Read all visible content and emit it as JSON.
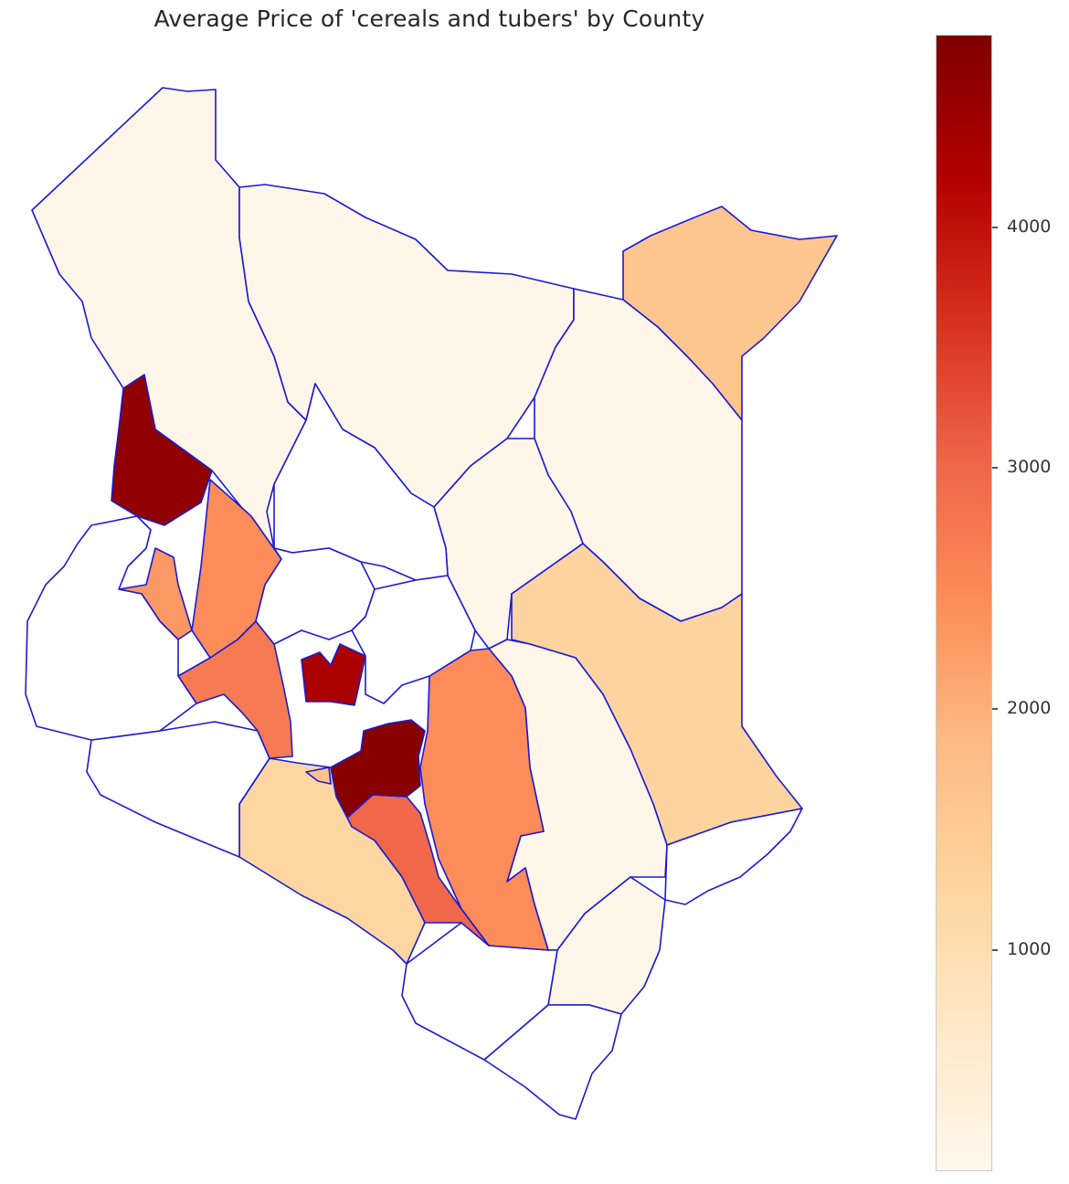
{
  "title": "Average Price of 'cereals and tubers' by County",
  "colorbar": {
    "cmap": "OrRd",
    "min": 80,
    "max": 4800,
    "ticks": [
      {
        "value": 1000,
        "label": "1000"
      },
      {
        "value": 2000,
        "label": "2000"
      },
      {
        "value": 3000,
        "label": "3000"
      },
      {
        "value": 4000,
        "label": "4000"
      }
    ],
    "stops": [
      "#fff7ec",
      "#fee8c8",
      "#fdd49e",
      "#fdbb84",
      "#fc8d59",
      "#ef6548",
      "#d7301f",
      "#b30000",
      "#7f0000"
    ]
  },
  "map": {
    "border_color": "#1a1ad6",
    "no_data_color": "#ffffff",
    "counties": [
      {
        "id": "turkana",
        "value": 150
      },
      {
        "id": "marsabit",
        "value": 150
      },
      {
        "id": "mandera",
        "value": 1600
      },
      {
        "id": "wajir",
        "value": 150
      },
      {
        "id": "isiolo",
        "value": 150
      },
      {
        "id": "garissa",
        "value": 1250
      },
      {
        "id": "tana-river",
        "value": 150
      },
      {
        "id": "lamu",
        "value": null
      },
      {
        "id": "kilifi",
        "value": 150
      },
      {
        "id": "mombasa-kwale",
        "value": null
      },
      {
        "id": "taita-taveta",
        "value": null
      },
      {
        "id": "kitui",
        "value": 2450
      },
      {
        "id": "makueni",
        "value": 3000
      },
      {
        "id": "machakos",
        "value": 4700
      },
      {
        "id": "kajiado",
        "value": 1200
      },
      {
        "id": "narok",
        "value": null
      },
      {
        "id": "muranga",
        "value": 4300
      },
      {
        "id": "nakuru",
        "value": 2700
      },
      {
        "id": "baringo",
        "value": 2450
      },
      {
        "id": "west-pokot",
        "value": 4600
      },
      {
        "id": "samburu",
        "value": null
      },
      {
        "id": "laikipia",
        "value": null
      },
      {
        "id": "meru-area",
        "value": null
      },
      {
        "id": "elgeyo-marakwet",
        "value": 2300
      },
      {
        "id": "kisumu",
        "value": 2400
      },
      {
        "id": "kiambu",
        "value": 1700
      },
      {
        "id": "western-cluster",
        "value": null
      }
    ]
  }
}
